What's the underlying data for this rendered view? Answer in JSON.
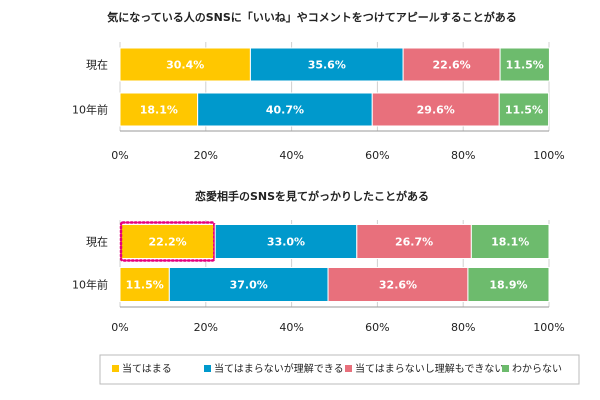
{
  "chart_data": [
    {
      "type": "bar",
      "orientation": "horizontal",
      "stacked": true,
      "title": "気になっている人のSNSに「いいね」やコメントをつけてアピールすることがある",
      "categories": [
        "現在",
        "10年前"
      ],
      "series": [
        {
          "name": "当てはまる",
          "color": "#FFC700",
          "values": [
            30.4,
            18.1
          ]
        },
        {
          "name": "当てはまらないが理解できる",
          "color": "#0099CC",
          "values": [
            35.6,
            40.7
          ]
        },
        {
          "name": "当てはまらないし理解もできない",
          "color": "#E8707C",
          "values": [
            22.6,
            29.6
          ]
        },
        {
          "name": "わからない",
          "color": "#6DBB6D",
          "values": [
            11.5,
            11.5
          ]
        }
      ],
      "value_labels": [
        [
          "30.4%",
          "35.6%",
          "22.6%",
          "11.5%"
        ],
        [
          "18.1%",
          "40.7%",
          "29.6%",
          "11.5%"
        ]
      ],
      "xlim": [
        0,
        100
      ],
      "xticks": [
        "0%",
        "20%",
        "40%",
        "60%",
        "80%",
        "100%"
      ],
      "grid": true
    },
    {
      "type": "bar",
      "orientation": "horizontal",
      "stacked": true,
      "title": "恋愛相手のSNSを見てがっかりしたことがある",
      "categories": [
        "現在",
        "10年前"
      ],
      "series": [
        {
          "name": "当てはまる",
          "color": "#FFC700",
          "values": [
            22.2,
            11.5
          ]
        },
        {
          "name": "当てはまらないが理解できる",
          "color": "#0099CC",
          "values": [
            33.0,
            37.0
          ]
        },
        {
          "name": "当てはまらないし理解もできない",
          "color": "#E8707C",
          "values": [
            26.7,
            32.6
          ]
        },
        {
          "name": "わからない",
          "color": "#6DBB6D",
          "values": [
            18.1,
            18.9
          ]
        }
      ],
      "value_labels": [
        [
          "22.2%",
          "33.0%",
          "26.7%",
          "18.1%"
        ],
        [
          "11.5%",
          "37.0%",
          "32.6%",
          "18.9%"
        ]
      ],
      "xlim": [
        0,
        100
      ],
      "xticks": [
        "0%",
        "20%",
        "40%",
        "60%",
        "80%",
        "100%"
      ],
      "grid": true,
      "highlight": {
        "category_index": 0,
        "series_index": 0,
        "color": "#E6007E",
        "style": "dotted"
      }
    }
  ],
  "legend": {
    "placement": "bottom",
    "items": [
      {
        "label": "当てはまる",
        "color": "#FFC700"
      },
      {
        "label": "当てはまらないが理解できる",
        "color": "#0099CC"
      },
      {
        "label": "当てはまらないし理解もできない",
        "color": "#E8707C"
      },
      {
        "label": "わからない",
        "color": "#6DBB6D"
      }
    ]
  }
}
